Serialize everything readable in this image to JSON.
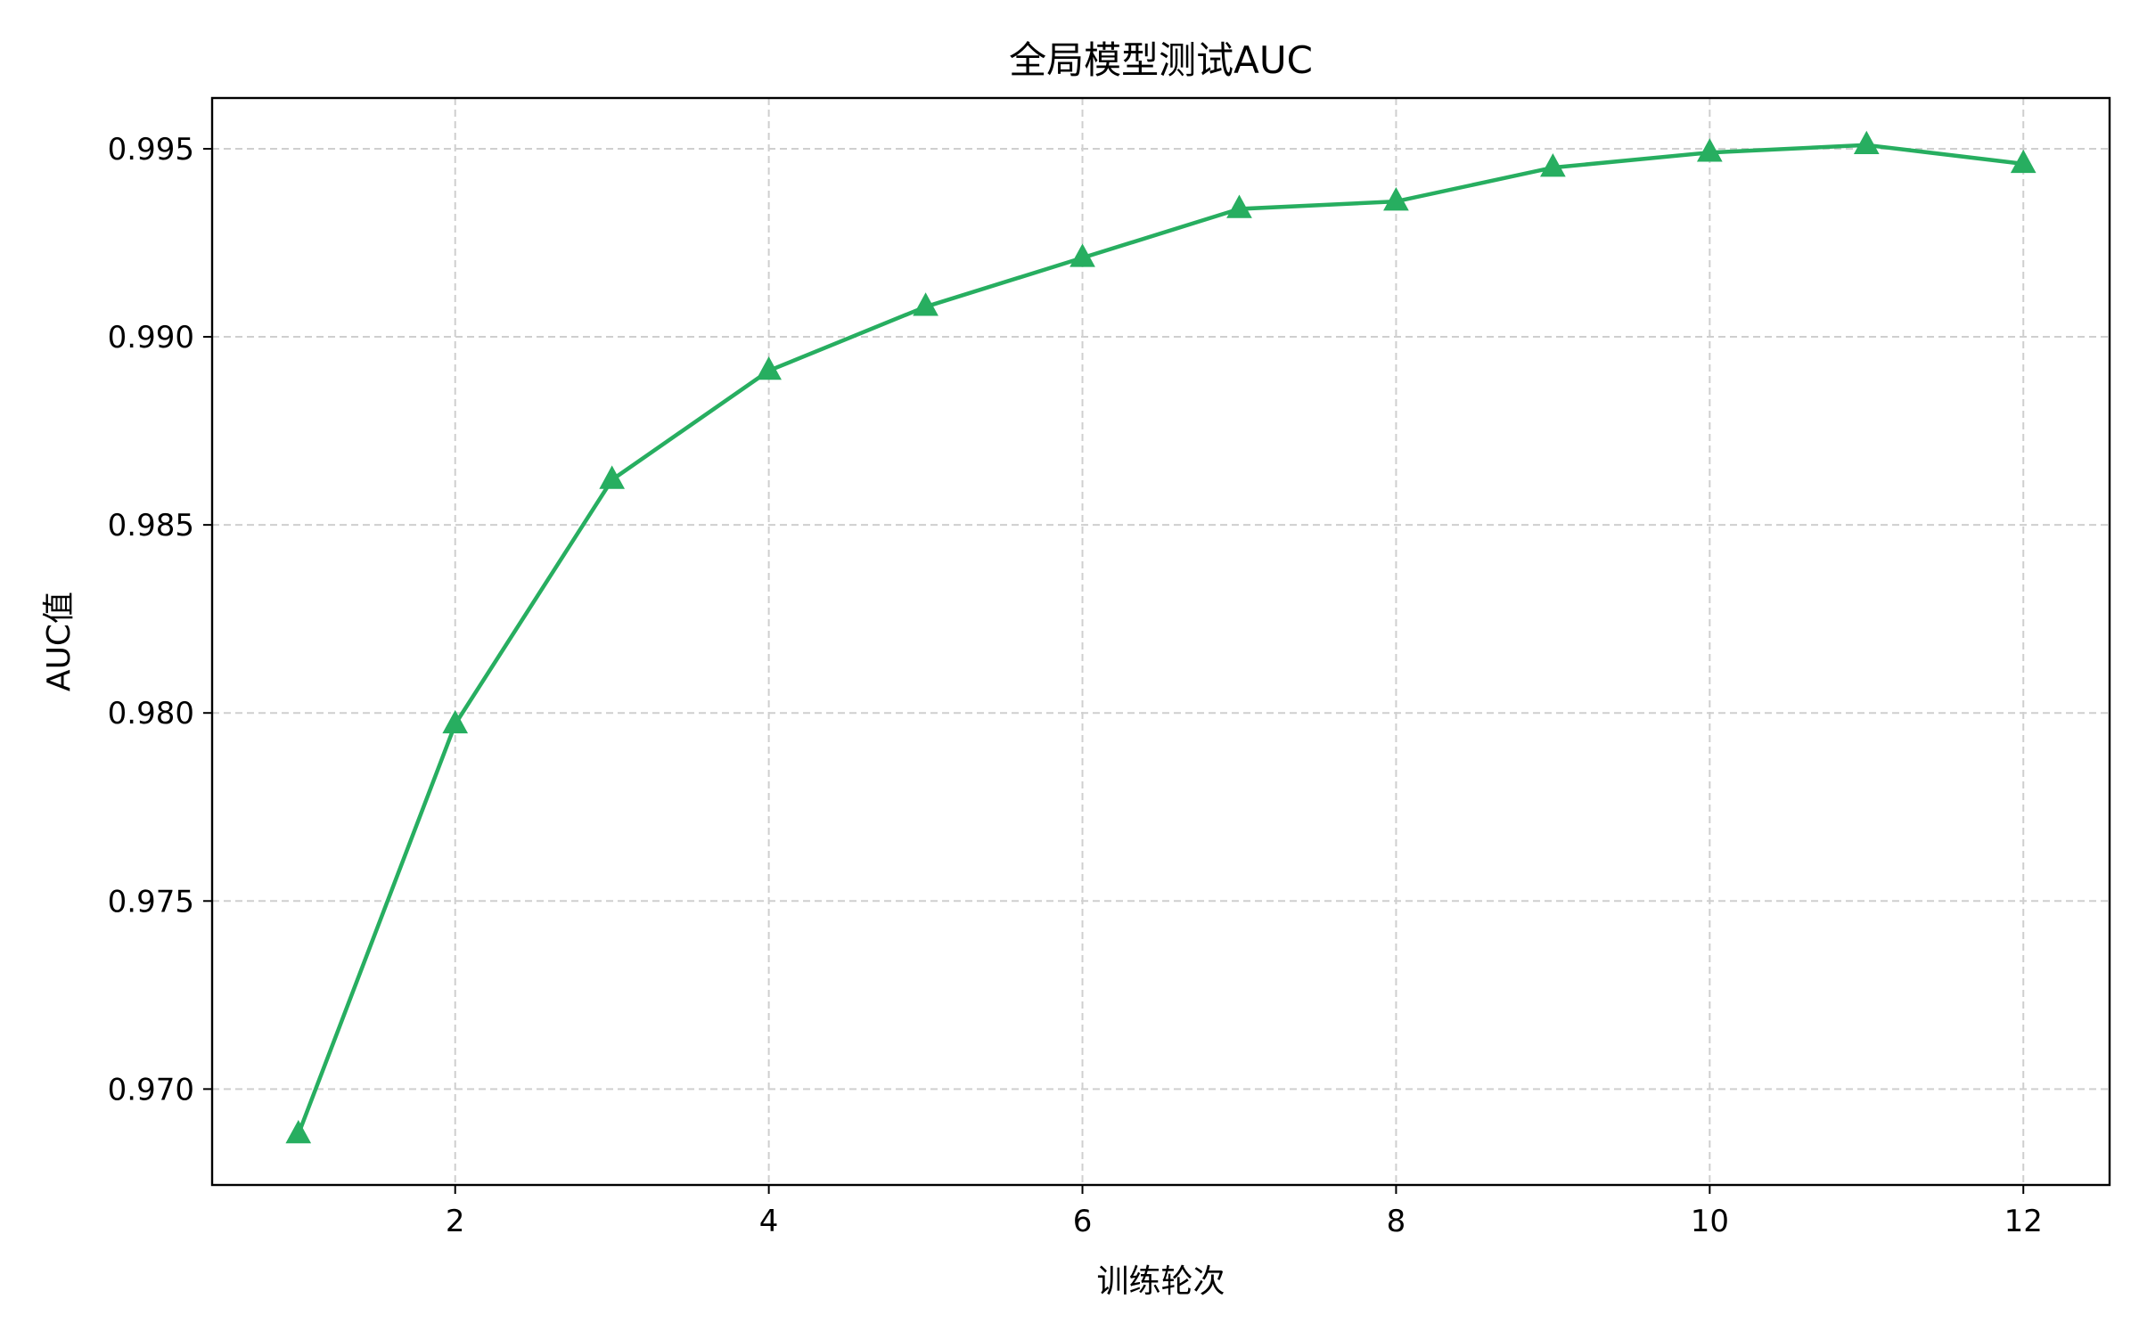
{
  "chart_data": {
    "type": "line",
    "title": "全局模型测试AUC",
    "xlabel": "训练轮次",
    "ylabel": "AUC值",
    "x": [
      1,
      2,
      3,
      4,
      5,
      6,
      7,
      8,
      9,
      10,
      11,
      12
    ],
    "series": [
      {
        "values": [
          0.9688,
          0.9797,
          0.9862,
          0.9891,
          0.9908,
          0.9921,
          0.9934,
          0.9936,
          0.9945,
          0.9949,
          0.9951,
          0.9946
        ],
        "color": "#27ae60",
        "marker": "triangle-up"
      }
    ],
    "xlim": [
      0.45,
      12.55
    ],
    "ylim": [
      0.96745,
      0.99635
    ],
    "xticks": [
      2,
      4,
      6,
      8,
      10,
      12
    ],
    "xtick_labels": [
      "2",
      "4",
      "6",
      "8",
      "10",
      "12"
    ],
    "yticks": [
      0.97,
      0.975,
      0.98,
      0.985,
      0.99,
      0.995
    ],
    "ytick_labels": [
      "0.970",
      "0.975",
      "0.980",
      "0.985",
      "0.990",
      "0.995"
    ],
    "grid": true,
    "grid_style": "dashed"
  }
}
